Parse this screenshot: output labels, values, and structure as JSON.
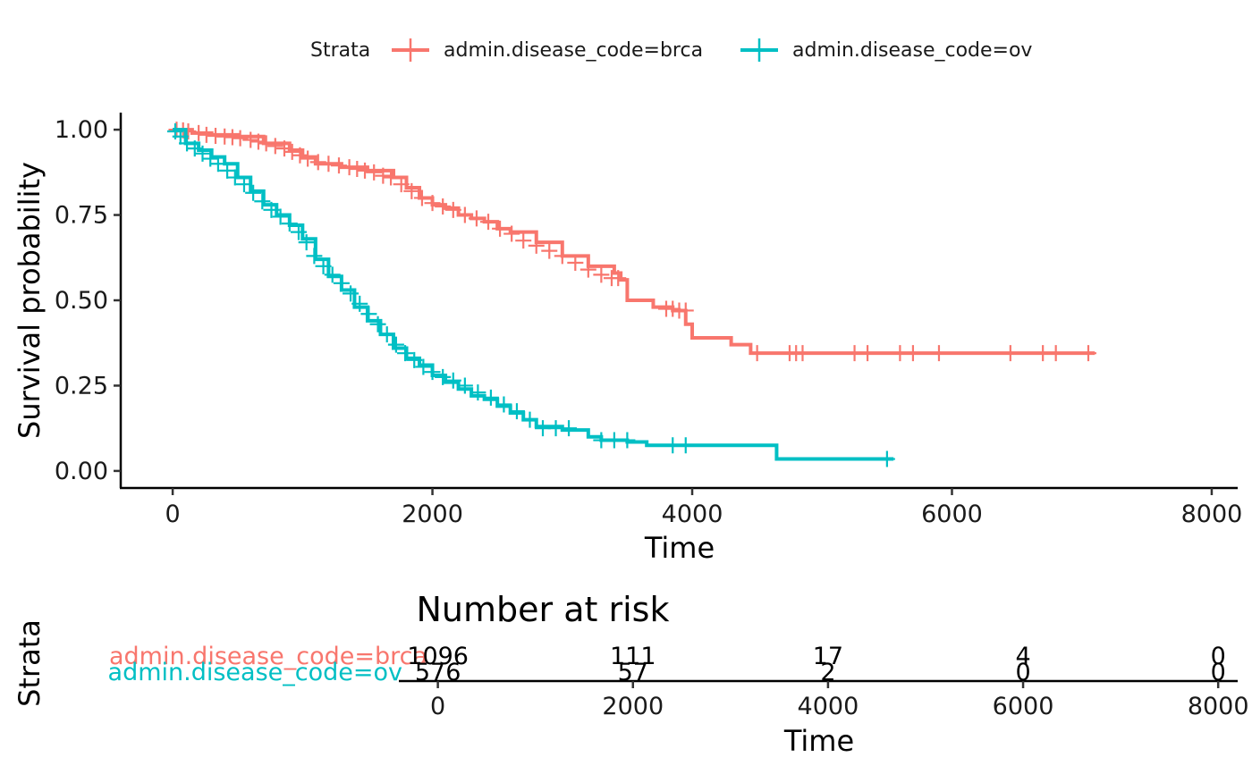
{
  "chart_data": [
    {
      "type": "line",
      "subtype": "kaplan-meier-survival",
      "title": "",
      "xlabel": "Time",
      "ylabel": "Survival probability",
      "xlim": [
        -400,
        8200
      ],
      "ylim": [
        -0.05,
        1.05
      ],
      "x_ticks": [
        0,
        2000,
        4000,
        6000,
        8000
      ],
      "x_tick_labels": [
        "0",
        "2000",
        "4000",
        "6000",
        "8000"
      ],
      "y_ticks": [
        0,
        0.25,
        0.5,
        0.75,
        1.0
      ],
      "y_tick_labels": [
        "0.00",
        "0.25",
        "0.50",
        "0.75",
        "1.00"
      ],
      "grid": false,
      "legend": {
        "placement": "top",
        "title": "Strata",
        "entries": [
          "admin.disease_code=brca",
          "admin.disease_code=ov"
        ]
      },
      "series": [
        {
          "name": "admin.disease_code=brca",
          "color": "#F8766D",
          "x": [
            0,
            150,
            300,
            500,
            700,
            900,
            1000,
            1100,
            1300,
            1500,
            1700,
            1800,
            1900,
            2000,
            2100,
            2200,
            2300,
            2400,
            2500,
            2600,
            2800,
            3000,
            3200,
            3400,
            3450,
            3500,
            3700,
            3850,
            3950,
            4000,
            4200,
            4300,
            4450,
            4600,
            5000,
            6000,
            7000,
            7100
          ],
          "y": [
            1.0,
            0.99,
            0.985,
            0.98,
            0.96,
            0.94,
            0.92,
            0.9,
            0.89,
            0.88,
            0.86,
            0.83,
            0.8,
            0.78,
            0.77,
            0.75,
            0.74,
            0.73,
            0.71,
            0.7,
            0.67,
            0.63,
            0.6,
            0.58,
            0.56,
            0.5,
            0.48,
            0.47,
            0.43,
            0.39,
            0.39,
            0.37,
            0.345,
            0.345,
            0.345,
            0.345,
            0.345,
            0.345
          ],
          "censor_x": [
            30,
            80,
            120,
            200,
            260,
            330,
            400,
            460,
            520,
            600,
            660,
            720,
            790,
            860,
            920,
            980,
            1040,
            1120,
            1200,
            1280,
            1360,
            1420,
            1480,
            1550,
            1620,
            1680,
            1760,
            1840,
            1920,
            2000,
            2080,
            2160,
            2250,
            2340,
            2430,
            2520,
            2610,
            2700,
            2800,
            2900,
            3000,
            3100,
            3200,
            3300,
            3380,
            3430,
            3800,
            3850,
            3900,
            3950,
            4500,
            4750,
            4800,
            4850,
            5250,
            5350,
            5600,
            5700,
            5900,
            6450,
            6700,
            6800,
            7050
          ],
          "censor_y": [
            1.0,
            0.998,
            0.995,
            0.99,
            0.985,
            0.982,
            0.98,
            0.978,
            0.975,
            0.97,
            0.965,
            0.96,
            0.952,
            0.945,
            0.935,
            0.925,
            0.915,
            0.905,
            0.9,
            0.895,
            0.89,
            0.885,
            0.88,
            0.875,
            0.865,
            0.86,
            0.84,
            0.82,
            0.8,
            0.785,
            0.775,
            0.765,
            0.75,
            0.74,
            0.73,
            0.71,
            0.695,
            0.675,
            0.66,
            0.645,
            0.63,
            0.61,
            0.59,
            0.575,
            0.565,
            0.565,
            0.475,
            0.475,
            0.47,
            0.47,
            0.345,
            0.345,
            0.345,
            0.345,
            0.345,
            0.345,
            0.345,
            0.345,
            0.345,
            0.345,
            0.345,
            0.345,
            0.345
          ]
        },
        {
          "name": "admin.disease_code=ov",
          "color": "#00BFC4",
          "x": [
            0,
            100,
            200,
            300,
            400,
            500,
            600,
            700,
            800,
            900,
            1000,
            1100,
            1200,
            1300,
            1400,
            1500,
            1600,
            1700,
            1800,
            1900,
            2000,
            2100,
            2200,
            2300,
            2400,
            2500,
            2600,
            2700,
            2800,
            3000,
            3200,
            3300,
            3500,
            3650,
            4000,
            4400,
            4650,
            5000,
            5500,
            5550
          ],
          "y": [
            1.0,
            0.96,
            0.94,
            0.92,
            0.9,
            0.86,
            0.82,
            0.78,
            0.75,
            0.72,
            0.68,
            0.62,
            0.57,
            0.53,
            0.48,
            0.44,
            0.4,
            0.36,
            0.33,
            0.31,
            0.28,
            0.26,
            0.24,
            0.22,
            0.21,
            0.19,
            0.17,
            0.15,
            0.13,
            0.12,
            0.1,
            0.09,
            0.085,
            0.075,
            0.075,
            0.075,
            0.035,
            0.035,
            0.035,
            0.035
          ],
          "censor_x": [
            20,
            60,
            110,
            170,
            230,
            290,
            350,
            420,
            480,
            550,
            620,
            690,
            760,
            830,
            900,
            970,
            1030,
            1090,
            1160,
            1230,
            1300,
            1370,
            1440,
            1510,
            1580,
            1650,
            1720,
            1790,
            1860,
            1930,
            2000,
            2080,
            2160,
            2250,
            2350,
            2450,
            2550,
            2650,
            2750,
            2850,
            2950,
            3050,
            3300,
            3400,
            3500,
            3850,
            3950,
            5500
          ],
          "censor_y": [
            0.995,
            0.98,
            0.96,
            0.945,
            0.93,
            0.915,
            0.9,
            0.88,
            0.86,
            0.84,
            0.815,
            0.79,
            0.765,
            0.745,
            0.725,
            0.7,
            0.67,
            0.63,
            0.6,
            0.575,
            0.55,
            0.52,
            0.49,
            0.46,
            0.43,
            0.4,
            0.37,
            0.345,
            0.325,
            0.305,
            0.29,
            0.275,
            0.265,
            0.25,
            0.23,
            0.215,
            0.195,
            0.175,
            0.15,
            0.125,
            0.125,
            0.125,
            0.09,
            0.09,
            0.09,
            0.075,
            0.075,
            0.035
          ]
        }
      ]
    },
    {
      "type": "table",
      "subtype": "number-at-risk",
      "title": "Number at risk",
      "xlabel": "Time",
      "ylabel": "Strata",
      "xlim": [
        -400,
        8200
      ],
      "x_ticks": [
        0,
        2000,
        4000,
        6000,
        8000
      ],
      "x_tick_labels": [
        "0",
        "2000",
        "4000",
        "6000",
        "8000"
      ],
      "rows": [
        {
          "label": "admin.disease_code=brca",
          "color": "#F8766D",
          "counts": [
            "1096",
            "111",
            "17",
            "4",
            "0"
          ]
        },
        {
          "label": "admin.disease_code=ov",
          "color": "#00BFC4",
          "counts": [
            "576",
            "57",
            "2",
            "0",
            "0"
          ]
        }
      ]
    }
  ]
}
